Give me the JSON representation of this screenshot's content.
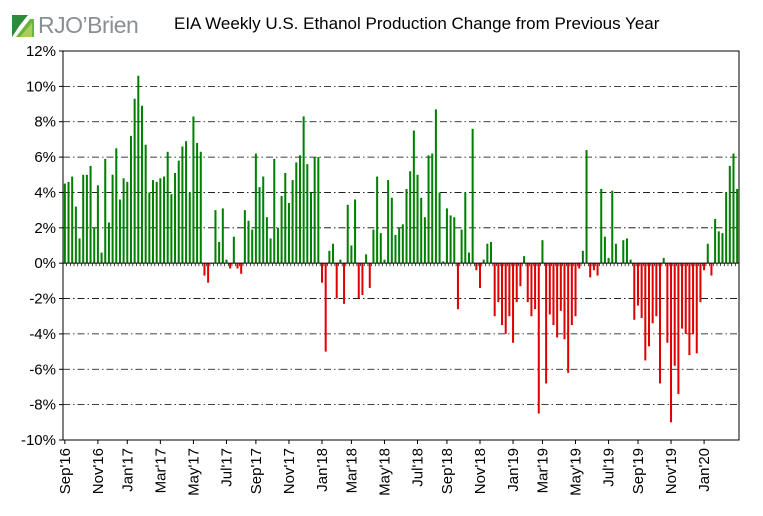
{
  "logo": {
    "text": "RJO’Brien"
  },
  "chart_data": {
    "type": "bar",
    "title": "EIA Weekly U.S. Ethanol Production Change from Previous Year",
    "unit": "%",
    "ylim": [
      -10,
      12
    ],
    "yticks": [
      12,
      10,
      8,
      6,
      4,
      2,
      0,
      -2,
      -4,
      -6,
      -8,
      -10
    ],
    "ytick_labels": [
      "12%",
      "10%",
      "8%",
      "6%",
      "4%",
      "2%",
      "0%",
      "-2%",
      "-4%",
      "-6%",
      "-8%",
      "-10%"
    ],
    "xtick_labels": [
      "Sep'16",
      "Nov'16",
      "Jan'17",
      "Mar'17",
      "May'17",
      "Jul'17",
      "Sep'17",
      "Nov'17",
      "Jan'18",
      "Mar'18",
      "May'18",
      "Jul'18",
      "Sep'18",
      "Nov'18",
      "Jan'19",
      "Mar'19",
      "May'19",
      "Jul'19",
      "Sep'19",
      "Nov'19",
      "Jan'20"
    ],
    "xtick_weeks": [
      0,
      9,
      17,
      26,
      35,
      44,
      52,
      61,
      70,
      78,
      87,
      96,
      104,
      113,
      122,
      130,
      139,
      148,
      156,
      165,
      174
    ],
    "grid": true,
    "positive_color": "#008000",
    "negative_color": "#e00000",
    "series": [
      {
        "values": [
          4.5,
          4.6,
          4.9,
          3.2,
          1.4,
          5.0,
          5.0,
          5.5,
          2.0,
          4.4,
          0.6,
          5.9,
          2.3,
          5.0,
          6.5,
          3.6,
          4.8,
          4.6,
          7.2,
          9.3,
          10.6,
          8.9,
          6.7,
          4.0,
          4.7,
          4.6,
          4.8,
          4.9,
          6.3,
          3.9,
          5.1,
          5.8,
          6.6,
          6.9,
          4.0,
          8.3,
          6.8,
          6.3,
          -0.7,
          -1.1,
          0.0,
          3.0,
          1.2,
          3.1,
          0.2,
          -0.3,
          1.5,
          -0.3,
          -0.6,
          3.0,
          2.4,
          1.9,
          6.2,
          4.3,
          4.9,
          2.6,
          1.4,
          5.9,
          2.0,
          3.8,
          5.1,
          3.4,
          4.7,
          5.7,
          6.1,
          8.3,
          5.6,
          4.0,
          6.0,
          6.0,
          -1.1,
          -5.0,
          0.7,
          1.1,
          -2.0,
          0.2,
          -2.3,
          3.3,
          1.0,
          3.6,
          -2.0,
          -1.8,
          0.5,
          -1.4,
          1.9,
          4.9,
          1.7,
          0.2,
          4.7,
          3.7,
          1.6,
          2.0,
          2.2,
          4.2,
          5.2,
          7.5,
          5.0,
          3.7,
          2.6,
          6.1,
          6.2,
          8.7,
          4.0,
          0.1,
          3.1,
          2.7,
          2.6,
          -2.6,
          1.9,
          4.0,
          0.6,
          7.6,
          -0.4,
          -1.4,
          0.2,
          1.1,
          1.2,
          -3.0,
          -2.2,
          -3.5,
          -4.0,
          -3.0,
          -4.5,
          -2.2,
          -1.3,
          0.4,
          -2.2,
          -3.0,
          -2.6,
          -8.5,
          1.3,
          -6.8,
          -2.9,
          -3.5,
          -4.2,
          -2.7,
          -4.3,
          -6.2,
          -3.5,
          -3.0,
          -0.3,
          0.7,
          6.4,
          -0.8,
          -0.4,
          -0.7,
          4.2,
          1.5,
          0.3,
          4.1,
          1.1,
          0.0,
          1.3,
          1.4,
          0.2,
          -3.2,
          -2.4,
          -3.1,
          -5.5,
          -4.7,
          -3.4,
          -3.0,
          -6.8,
          0.3,
          -4.5,
          -9.0,
          -5.8,
          -7.4,
          -3.7,
          -4.0,
          -5.2,
          -4.0,
          -5.1,
          -2.2,
          -0.4,
          1.1,
          -0.7,
          2.5,
          1.8,
          1.7,
          4.0,
          5.5,
          6.2,
          4.2
        ]
      }
    ]
  }
}
